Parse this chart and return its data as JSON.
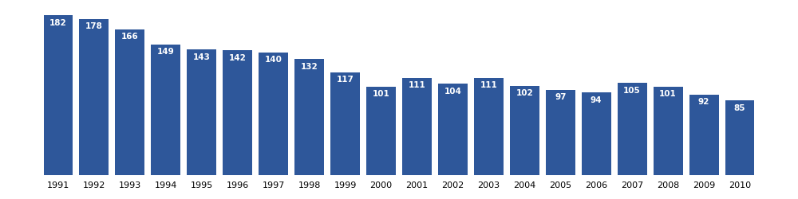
{
  "years": [
    1991,
    1992,
    1993,
    1994,
    1995,
    1996,
    1997,
    1998,
    1999,
    2000,
    2001,
    2002,
    2003,
    2004,
    2005,
    2006,
    2007,
    2008,
    2009,
    2010
  ],
  "values": [
    182,
    178,
    166,
    149,
    143,
    142,
    140,
    132,
    117,
    101,
    111,
    104,
    111,
    102,
    97,
    94,
    105,
    101,
    92,
    85
  ],
  "bar_color": "#2e579a",
  "label_color": "#ffffff",
  "label_fontsize": 7.5,
  "xlabel_fontsize": 8,
  "background_color": "#ffffff",
  "ylim": [
    0,
    195
  ],
  "bar_width": 0.82
}
